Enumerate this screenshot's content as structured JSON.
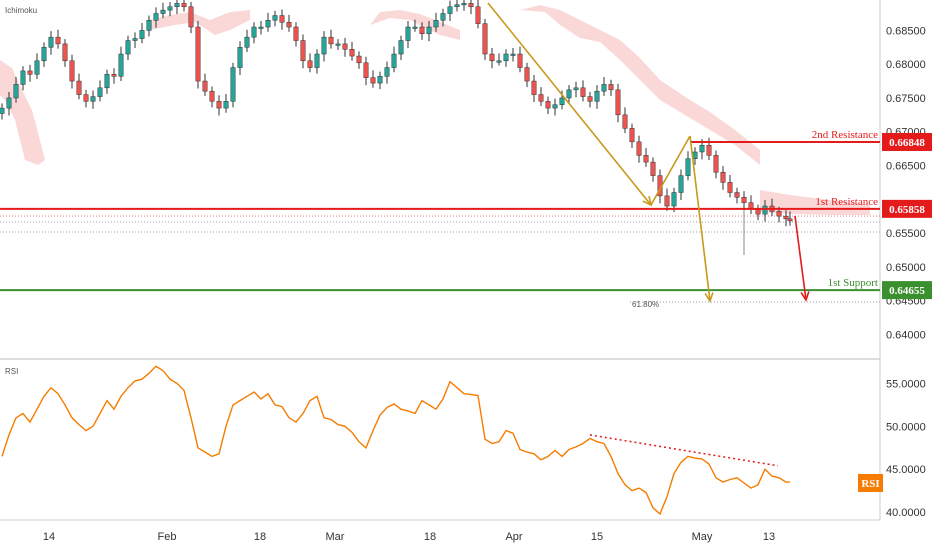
{
  "chart_data": [
    {
      "type": "candlestick",
      "indicator_label": "Ichimoku",
      "ylim": [
        0.6365,
        0.6895
      ],
      "y_ticks": [
        "0.68500",
        "0.68000",
        "0.67500",
        "0.67000",
        "0.66500",
        "0.65500",
        "0.65000",
        "0.64500",
        "0.64000"
      ],
      "y_tick_values": [
        0.685,
        0.68,
        0.675,
        0.67,
        0.665,
        0.655,
        0.65,
        0.645,
        0.64
      ],
      "x_ticks": [
        "14",
        "Feb",
        "18",
        "Mar",
        "18",
        "Apr",
        "15",
        "May",
        "13"
      ],
      "levels": [
        {
          "label": "2nd Resistance",
          "value": 0.66848,
          "value_text": "0.66848",
          "color": "#e31b1b"
        },
        {
          "label": "1st Resistance",
          "value": 0.65858,
          "value_text": "0.65858",
          "color": "#e31b1b"
        },
        {
          "label": "1st Support",
          "value": 0.64655,
          "value_text": "0.64655",
          "color": "#3a8f2e"
        }
      ],
      "fib_label": "61.80%",
      "colors": {
        "up": "#26a69a",
        "down": "#ef5350",
        "cloud": "#f7a8a8",
        "arrow_gold": "#c8991a",
        "arrow_red": "#e31b1b"
      },
      "series": {
        "x": [
          0,
          7,
          14,
          21,
          28,
          35,
          42,
          49,
          56,
          63,
          70,
          77,
          84,
          91,
          98,
          105,
          112,
          119,
          126,
          133,
          140,
          147,
          154,
          161,
          168,
          175,
          182,
          189,
          196,
          203,
          210,
          217,
          224,
          231,
          238,
          245,
          252,
          259,
          266,
          273,
          280,
          287,
          294,
          301,
          308,
          315,
          322,
          329,
          336,
          343,
          350,
          357,
          364,
          371,
          378,
          385,
          392,
          399,
          406,
          413,
          420,
          427,
          434,
          441,
          448,
          455,
          462,
          469,
          476,
          483,
          490,
          497,
          504,
          511,
          518,
          525,
          532,
          539,
          546,
          553,
          560,
          567,
          574,
          581,
          588,
          595,
          602,
          609,
          616,
          623,
          630,
          637,
          644,
          651,
          658,
          665,
          672,
          679,
          686,
          693,
          700,
          707,
          714,
          721,
          728,
          735,
          742,
          749,
          756,
          763,
          770,
          777,
          784,
          788
        ],
        "close": [
          0.6735,
          0.675,
          0.677,
          0.679,
          0.6785,
          0.6805,
          0.6825,
          0.684,
          0.683,
          0.6805,
          0.6775,
          0.6755,
          0.6745,
          0.6752,
          0.6765,
          0.6785,
          0.6782,
          0.6815,
          0.6835,
          0.6838,
          0.685,
          0.6865,
          0.6875,
          0.688,
          0.6885,
          0.689,
          0.6885,
          0.6855,
          0.6775,
          0.676,
          0.6745,
          0.6735,
          0.6745,
          0.6795,
          0.6825,
          0.684,
          0.6855,
          0.6855,
          0.6865,
          0.6872,
          0.6862,
          0.6855,
          0.6835,
          0.6805,
          0.6795,
          0.6815,
          0.684,
          0.683,
          0.683,
          0.6822,
          0.6812,
          0.6802,
          0.678,
          0.6772,
          0.6782,
          0.6795,
          0.6815,
          0.6835,
          0.6855,
          0.6855,
          0.6845,
          0.6855,
          0.6865,
          0.6875,
          0.6885,
          0.6888,
          0.689,
          0.6885,
          0.686,
          0.6815,
          0.6805,
          0.6805,
          0.6815,
          0.6815,
          0.6795,
          0.6775,
          0.6755,
          0.6745,
          0.6735,
          0.674,
          0.675,
          0.6762,
          0.6765,
          0.6752,
          0.6745,
          0.676,
          0.677,
          0.6762,
          0.6725,
          0.6705,
          0.6685,
          0.6665,
          0.6655,
          0.6635,
          0.6605,
          0.659,
          0.661,
          0.6635,
          0.666,
          0.667,
          0.668,
          0.6665,
          0.664,
          0.6625,
          0.661,
          0.6603,
          0.6595,
          0.6585,
          0.6578,
          0.659,
          0.6582,
          0.6575,
          0.6571,
          0.6568
        ]
      }
    },
    {
      "type": "line",
      "indicator_label": "RSI",
      "badge_label": "RSI",
      "ylim": [
        39.2,
        57.5
      ],
      "y_ticks": [
        "55.0000",
        "50.0000",
        "45.0000",
        "40.0000"
      ],
      "y_tick_values": [
        55,
        50,
        45,
        40
      ],
      "colors": {
        "line": "#f57c00",
        "trend": "#e31b1b"
      },
      "series": {
        "x": [
          0,
          7,
          14,
          21,
          28,
          35,
          42,
          49,
          56,
          63,
          70,
          77,
          84,
          91,
          98,
          105,
          112,
          119,
          126,
          133,
          140,
          147,
          154,
          161,
          168,
          175,
          182,
          189,
          196,
          203,
          210,
          217,
          224,
          231,
          238,
          245,
          252,
          259,
          266,
          273,
          280,
          287,
          294,
          301,
          308,
          315,
          322,
          329,
          336,
          343,
          350,
          357,
          364,
          371,
          378,
          385,
          392,
          399,
          406,
          413,
          420,
          427,
          434,
          441,
          448,
          455,
          462,
          469,
          476,
          483,
          490,
          497,
          504,
          511,
          518,
          525,
          532,
          539,
          546,
          553,
          560,
          567,
          574,
          581,
          588,
          595,
          602,
          609,
          616,
          623,
          630,
          637,
          644,
          651,
          658,
          665,
          672,
          679,
          686,
          693,
          700,
          707,
          714,
          721,
          728,
          735,
          742,
          749,
          756,
          763,
          770,
          777,
          784,
          788
        ],
        "values": [
          46.5,
          49,
          51,
          51.5,
          50.5,
          52,
          53.5,
          54.5,
          53.8,
          52.5,
          51,
          50.2,
          49.5,
          50,
          51.5,
          53,
          52,
          53.5,
          54.5,
          55.3,
          55.5,
          56.2,
          57,
          56.5,
          55.5,
          55,
          54.2,
          51,
          47.5,
          47,
          46.5,
          46.8,
          50,
          52.5,
          53,
          53.5,
          54,
          53.2,
          53.8,
          52.5,
          52.3,
          51,
          50.5,
          51.5,
          53,
          53.5,
          51,
          50.8,
          50.2,
          50,
          49.3,
          48.2,
          47.5,
          49.5,
          51.3,
          52.2,
          52.6,
          52,
          51.8,
          51.5,
          53,
          52.5,
          52,
          53.2,
          55.2,
          54.5,
          53.8,
          53.7,
          53.6,
          48.5,
          48,
          48.2,
          49.5,
          49.2,
          47.3,
          47,
          46.8,
          46.1,
          46.5,
          47.2,
          46.5,
          47.3,
          47.6,
          48,
          48.6,
          48.2,
          48,
          46.5,
          44.5,
          43.2,
          42.5,
          42.8,
          42.3,
          40.5,
          39.8,
          41.8,
          44.5,
          45.8,
          46.5,
          46.3,
          46.2,
          45.6,
          44,
          43.5,
          43.8,
          44,
          43.4,
          42.8,
          43.2,
          45,
          44.2,
          44,
          43.5,
          43.5
        ]
      }
    }
  ]
}
